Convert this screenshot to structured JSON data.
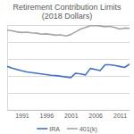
{
  "chart_data": {
    "type": "line",
    "title": "Retirement Contribution Limits (2018 Dollars)",
    "x": [
      1988,
      1989,
      1990,
      1991,
      1992,
      1993,
      1994,
      1995,
      1996,
      1997,
      1998,
      1999,
      2000,
      2001,
      2002,
      2003,
      2004,
      2005,
      2006,
      2007,
      2008,
      2009,
      2010,
      2011,
      2012,
      2013
    ],
    "series": [
      {
        "name": "IRA",
        "color": "#4472c4",
        "line_style": "solid",
        "values": [
          12800,
          12300,
          11900,
          11500,
          11200,
          11000,
          10800,
          10600,
          10400,
          10200,
          10100,
          9900,
          9700,
          9500,
          10800,
          10600,
          10300,
          12200,
          11900,
          11600,
          13300,
          13300,
          13100,
          12800,
          12500,
          13500
        ]
      },
      {
        "name": "401(k)",
        "color": "#a5a5a5",
        "line_style": "solid",
        "values": [
          23500,
          23300,
          23000,
          22800,
          22900,
          22700,
          22600,
          22300,
          22400,
          22200,
          22000,
          22100,
          21800,
          22200,
          23000,
          23800,
          24300,
          24800,
          24900,
          24700,
          24500,
          24600,
          24300,
          23800,
          24100,
          24000
        ]
      }
    ],
    "xlim": [
      1988,
      2013
    ],
    "xticks": [
      1991,
      1996,
      2001,
      2006,
      2011
    ],
    "ylim": [
      0,
      25000
    ],
    "yticks": [
      0,
      5000,
      10000,
      15000,
      20000,
      25000
    ],
    "grid": true,
    "legend": "bottom",
    "tick_labels": "x"
  }
}
